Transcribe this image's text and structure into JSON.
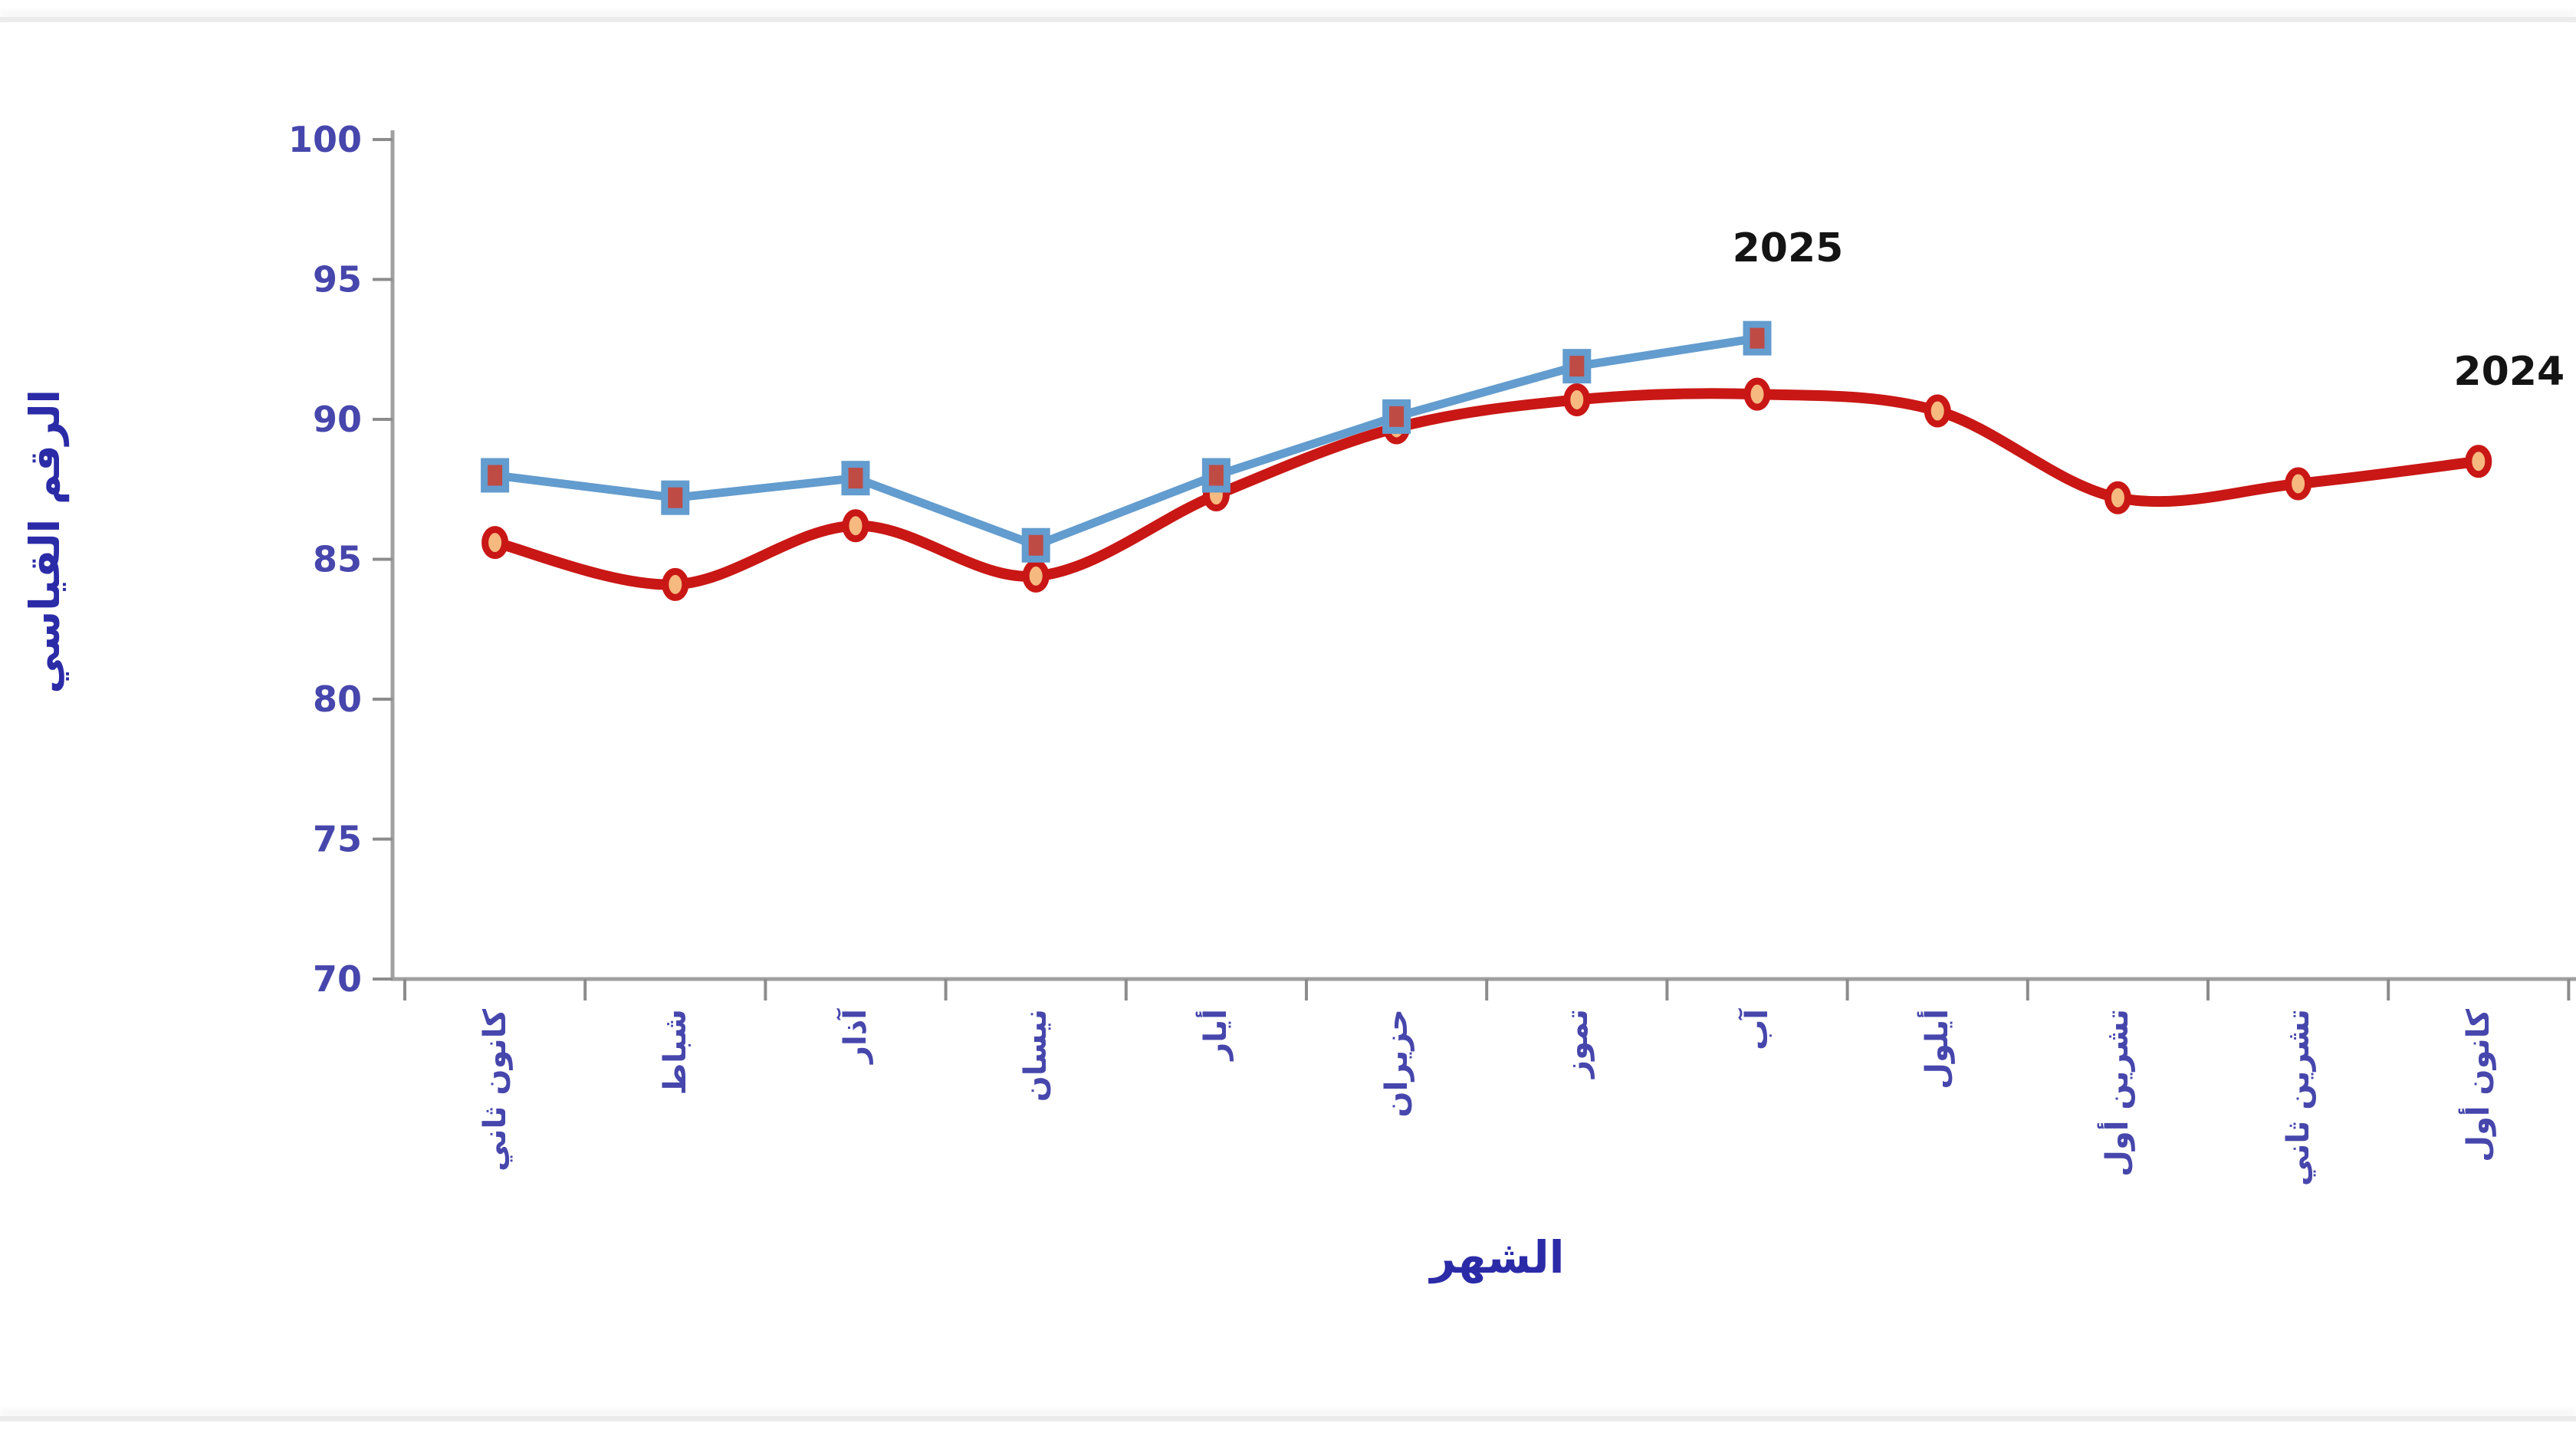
{
  "page": {
    "background": "#ffffff"
  },
  "borders": {
    "top_rule": "true",
    "bottom_rule": "true",
    "rule_color": "#ebebeb"
  },
  "chart_data": {
    "type": "line",
    "title": "",
    "xlabel": "الشهر",
    "ylabel": "الرقم القياسي",
    "ylim": [
      70,
      100
    ],
    "ytick_step": 5,
    "yticks": [
      70,
      75,
      80,
      85,
      90,
      95,
      100
    ],
    "grid": false,
    "legend": "series-end-labels",
    "categories": [
      "كانون ثاني",
      "شباط",
      "آذار",
      "نيسان",
      "أيار",
      "حزيران",
      "تموز",
      "آب",
      "أيلول",
      "تشرين أول",
      "تشرين ثاني",
      "كانون أول"
    ],
    "series": [
      {
        "name": "2024",
        "color": "#C91715",
        "marker": "circle",
        "marker_fill": "#F6B97F",
        "smooth": true,
        "values": [
          85.6,
          84.1,
          86.2,
          84.4,
          87.3,
          89.7,
          90.7,
          90.9,
          90.3,
          87.2,
          87.7,
          88.5
        ]
      },
      {
        "name": "2025",
        "color": "#639CCE",
        "marker": "square",
        "marker_fill": "#BF4B45",
        "smooth": false,
        "values": [
          88.0,
          87.2,
          87.9,
          85.5,
          88.0,
          90.1,
          91.9,
          92.9
        ]
      }
    ]
  },
  "colors": {
    "axis_line": "#A0A0A0",
    "tick_mark": "#8C8C8C",
    "tick_label": "#4646AC",
    "axis_title": "#2B2BA8",
    "year_label": "#141414"
  }
}
